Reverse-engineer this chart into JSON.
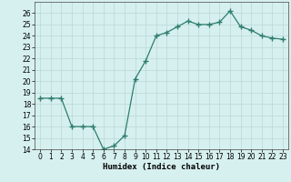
{
  "x": [
    0,
    1,
    2,
    3,
    4,
    5,
    6,
    7,
    8,
    9,
    10,
    11,
    12,
    13,
    14,
    15,
    16,
    17,
    18,
    19,
    20,
    21,
    22,
    23
  ],
  "y": [
    18.5,
    18.5,
    18.5,
    16.0,
    16.0,
    16.0,
    14.0,
    14.3,
    15.2,
    20.2,
    21.8,
    24.0,
    24.3,
    24.8,
    25.3,
    25.0,
    25.0,
    25.2,
    26.2,
    24.8,
    24.5,
    24.0,
    23.8,
    23.7
  ],
  "line_color": "#2e7d6e",
  "marker": "+",
  "marker_size": 4,
  "bg_color": "#d6f0ef",
  "grid_color": "#b8d8d5",
  "xlabel": "Humidex (Indice chaleur)",
  "xlim": [
    -0.5,
    23.5
  ],
  "ylim": [
    14,
    27
  ],
  "yticks": [
    14,
    15,
    16,
    17,
    18,
    19,
    20,
    21,
    22,
    23,
    24,
    25,
    26
  ],
  "xticks": [
    0,
    1,
    2,
    3,
    4,
    5,
    6,
    7,
    8,
    9,
    10,
    11,
    12,
    13,
    14,
    15,
    16,
    17,
    18,
    19,
    20,
    21,
    22,
    23
  ],
  "xlabel_fontsize": 6.5,
  "tick_fontsize": 5.5
}
